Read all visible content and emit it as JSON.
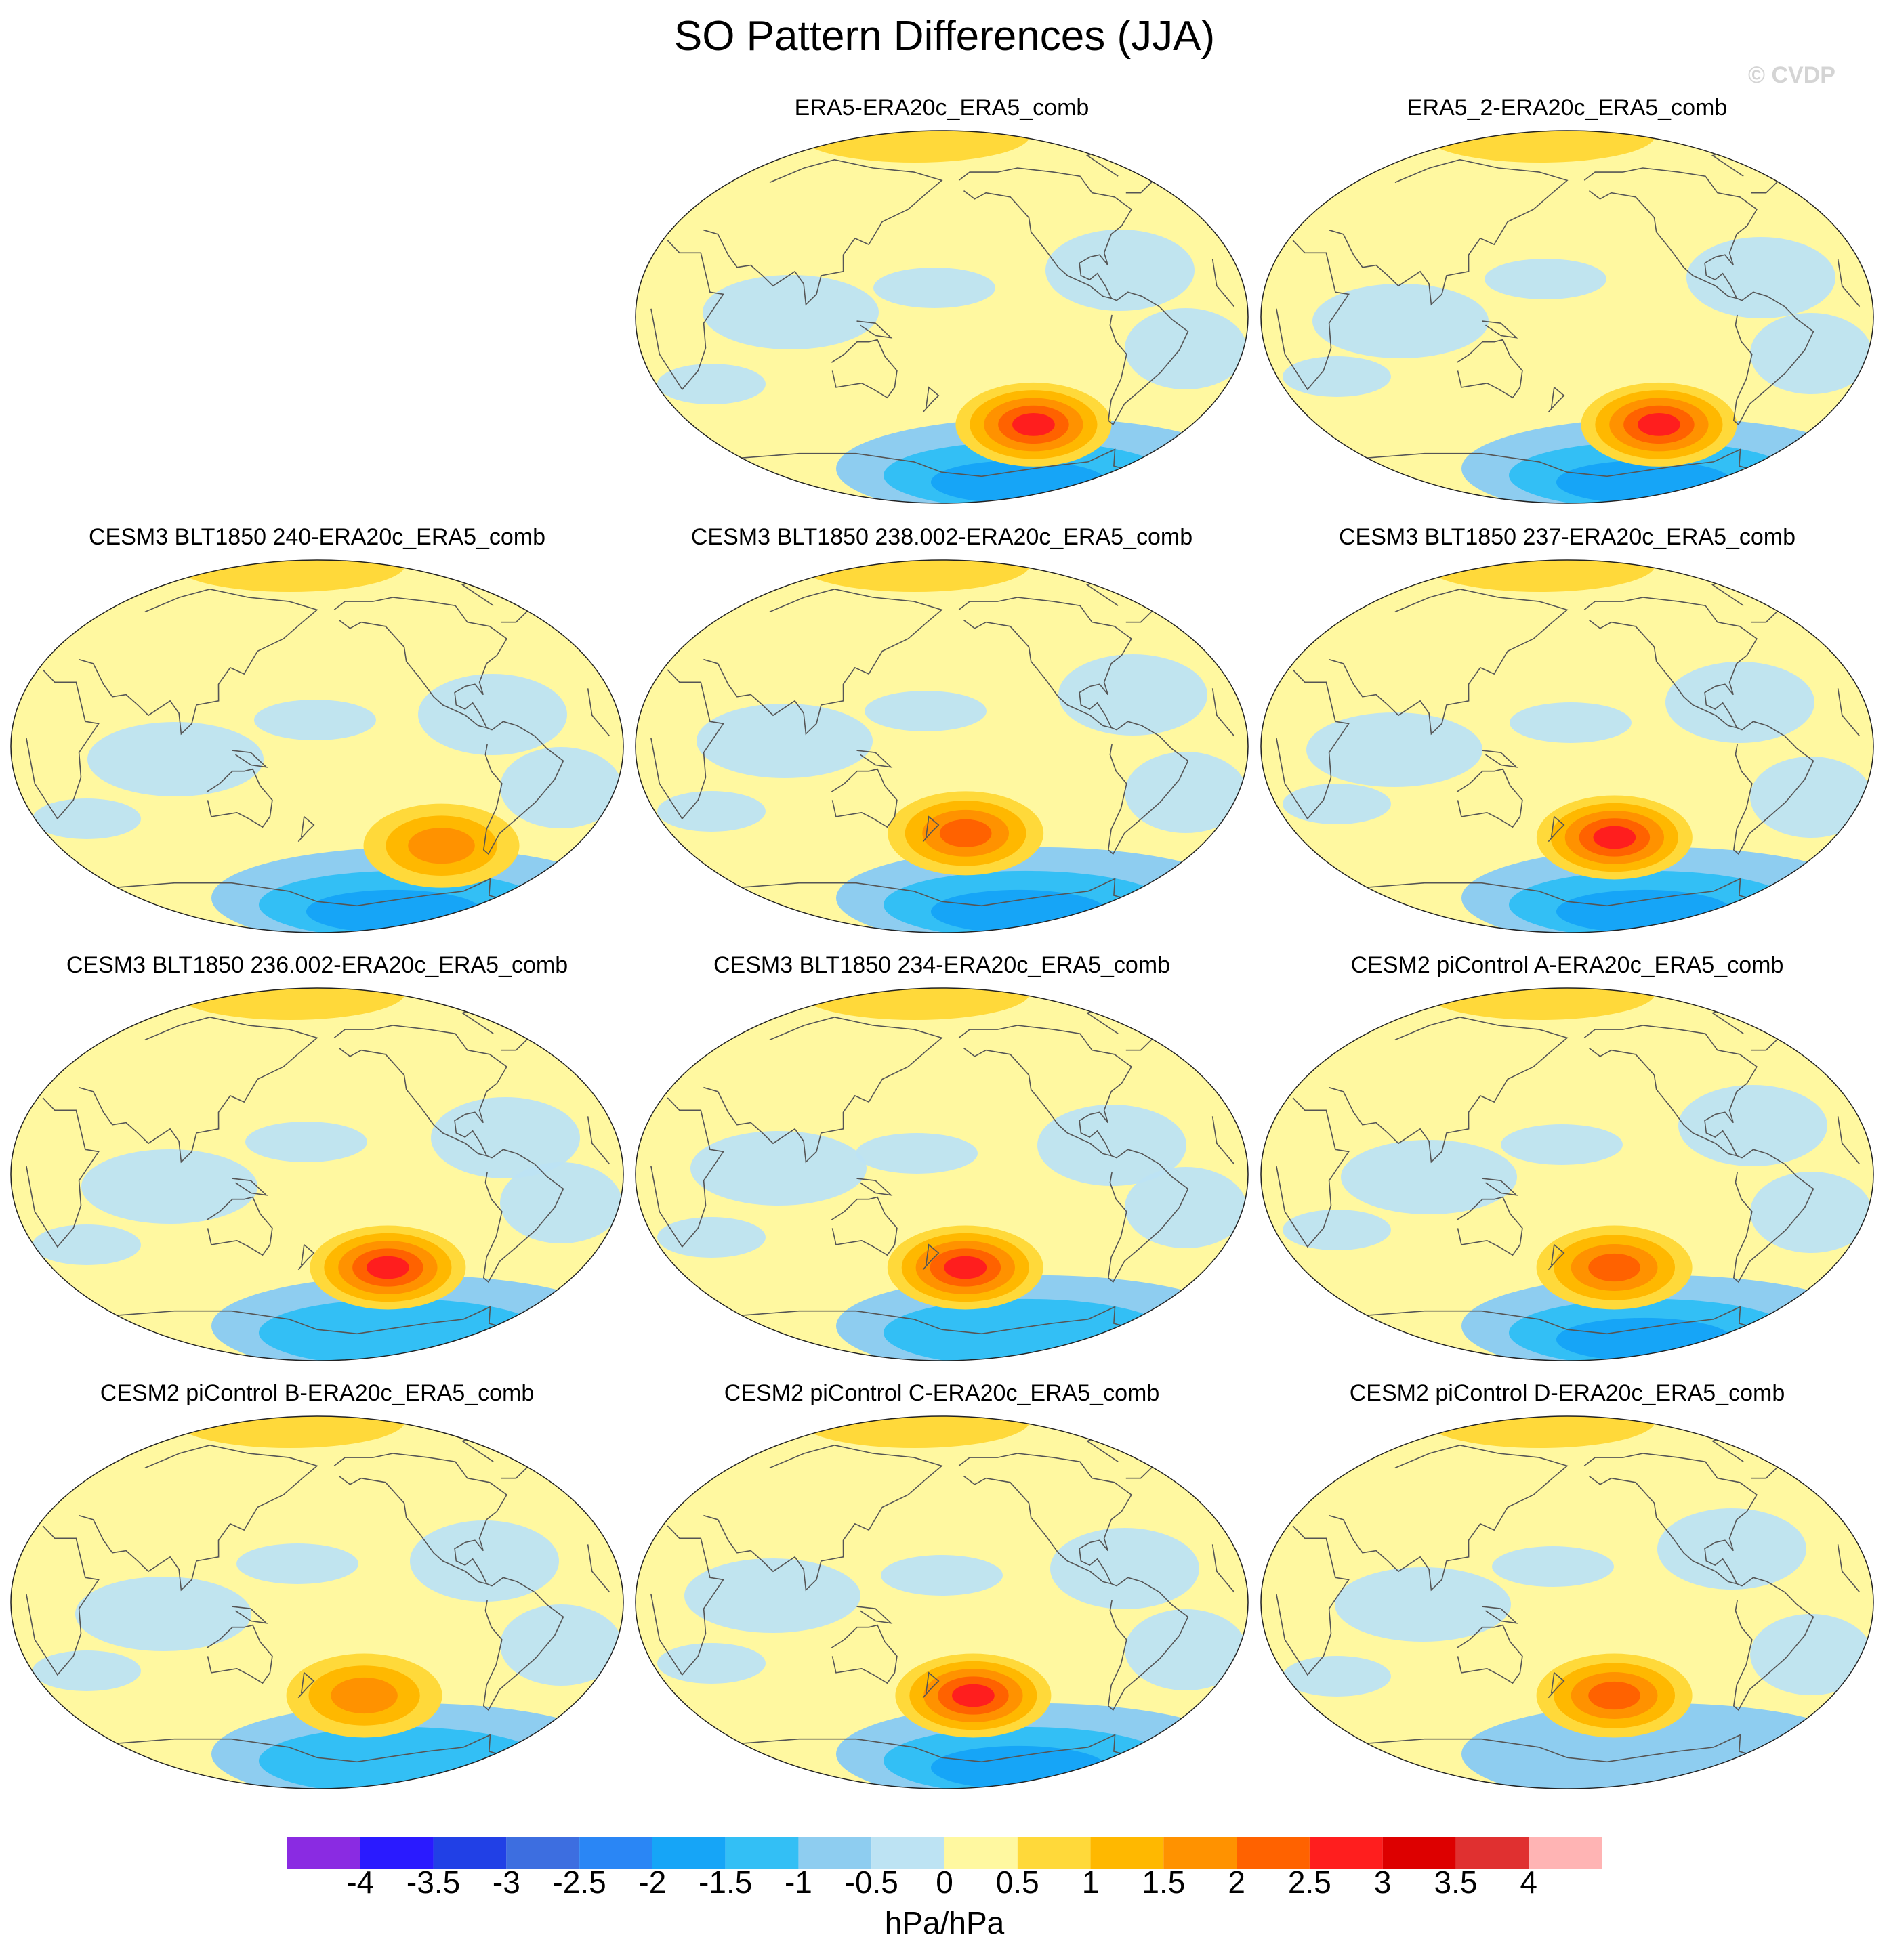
{
  "title": "SO Pattern Differences (JJA)",
  "watermark": "© CVDP",
  "colorbar": {
    "units": "hPa/hPa",
    "labels": [
      "-4",
      "-3.5",
      "-3",
      "-2.5",
      "-2",
      "-1.5",
      "-1",
      "-0.5",
      "0",
      "0.5",
      "1",
      "1.5",
      "2",
      "2.5",
      "3",
      "3.5",
      "4"
    ],
    "colors": [
      "#8a2be2",
      "#2a1aff",
      "#2140e6",
      "#3d6ee0",
      "#2a86f5",
      "#16a5f7",
      "#33bff5",
      "#8ecdf0",
      "#bde3f3",
      "#fff8a0",
      "#ffd93a",
      "#ffb800",
      "#ff9200",
      "#ff6200",
      "#ff1e1e",
      "#dd0000",
      "#e03030",
      "#ffb4b4"
    ]
  },
  "chart_data": [
    {
      "type": "heatmap",
      "title": "ERA5-ERA20c_ERA5_comb",
      "projection": "Robinson, Pacific-centred",
      "variable": "SO pattern difference",
      "units": "hPa/hPa",
      "high_center": {
        "lon": -120,
        "lat": -52,
        "value": 2.5
      },
      "low_region": {
        "location": "Antarctic / Amundsen Sea",
        "value": -1.5
      }
    },
    {
      "type": "heatmap",
      "title": "ERA5_2-ERA20c_ERA5_comb",
      "projection": "Robinson, Pacific-centred",
      "variable": "SO pattern difference",
      "units": "hPa/hPa",
      "high_center": {
        "lon": -120,
        "lat": -52,
        "value": 2.5
      },
      "low_region": {
        "location": "Antarctic / Amundsen Sea",
        "value": -1.5
      }
    },
    {
      "type": "heatmap",
      "title": "CESM3 BLT1850 240-ERA20c_ERA5_comb",
      "projection": "Robinson, Pacific-centred",
      "variable": "SO pattern difference",
      "units": "hPa/hPa",
      "high_center": {
        "lon": -100,
        "lat": -48,
        "value": 1.5
      },
      "low_region": {
        "location": "Antarctic / Amundsen Sea",
        "value": -2
      }
    },
    {
      "type": "heatmap",
      "title": "CESM3 BLT1850 238.002-ERA20c_ERA5_comb",
      "projection": "Robinson, Pacific-centred",
      "variable": "SO pattern difference",
      "units": "hPa/hPa",
      "high_center": {
        "lon": -165,
        "lat": -42,
        "value": 2
      },
      "low_region": {
        "location": "Antarctic / Amundsen Sea",
        "value": -2
      }
    },
    {
      "type": "heatmap",
      "title": "CESM3 BLT1850 237-ERA20c_ERA5_comb",
      "projection": "Robinson, Pacific-centred",
      "variable": "SO pattern difference",
      "units": "hPa/hPa",
      "high_center": {
        "lon": -150,
        "lat": -44,
        "value": 2.5
      },
      "low_region": {
        "location": "Antarctic / Amundsen Sea",
        "value": -1.5
      }
    },
    {
      "type": "heatmap",
      "title": "CESM3 BLT1850 236.002-ERA20c_ERA5_comb",
      "projection": "Robinson, Pacific-centred",
      "variable": "SO pattern difference",
      "units": "hPa/hPa",
      "high_center": {
        "lon": -135,
        "lat": -45,
        "value": 2.5
      },
      "low_region": {
        "location": "Antarctic / Amundsen Sea",
        "value": -1
      }
    },
    {
      "type": "heatmap",
      "title": "CESM3 BLT1850 234-ERA20c_ERA5_comb",
      "projection": "Robinson, Pacific-centred",
      "variable": "SO pattern difference",
      "units": "hPa/hPa",
      "high_center": {
        "lon": -165,
        "lat": -45,
        "value": 2.5
      },
      "low_region": {
        "location": "Antarctic / Amundsen Sea",
        "value": -1
      }
    },
    {
      "type": "heatmap",
      "title": "CESM2 piControl A-ERA20c_ERA5_comb",
      "projection": "Robinson, Pacific-centred",
      "variable": "SO pattern difference",
      "units": "hPa/hPa",
      "high_center": {
        "lon": -150,
        "lat": -45,
        "value": 2
      },
      "low_region": {
        "location": "Antarctic / Amundsen Sea",
        "value": -1.5
      }
    },
    {
      "type": "heatmap",
      "title": "CESM2 piControl B-ERA20c_ERA5_comb",
      "projection": "Robinson, Pacific-centred",
      "variable": "SO pattern difference",
      "units": "hPa/hPa",
      "high_center": {
        "lon": -150,
        "lat": -45,
        "value": 1.5
      },
      "low_region": {
        "location": "Antarctic / Amundsen Sea",
        "value": -1
      }
    },
    {
      "type": "heatmap",
      "title": "CESM2 piControl C-ERA20c_ERA5_comb",
      "projection": "Robinson, Pacific-centred",
      "variable": "SO pattern difference",
      "units": "hPa/hPa",
      "high_center": {
        "lon": -160,
        "lat": -45,
        "value": 2.5
      },
      "low_region": {
        "location": "Antarctic / Amundsen Sea",
        "value": -1.5
      }
    },
    {
      "type": "heatmap",
      "title": "CESM2 piControl D-ERA20c_ERA5_comb",
      "projection": "Robinson, Pacific-centred",
      "variable": "SO pattern difference",
      "units": "hPa/hPa",
      "high_center": {
        "lon": -150,
        "lat": -45,
        "value": 2
      },
      "low_region": {
        "location": "Antarctic / Amundsen Sea",
        "value": -0.5
      }
    }
  ]
}
